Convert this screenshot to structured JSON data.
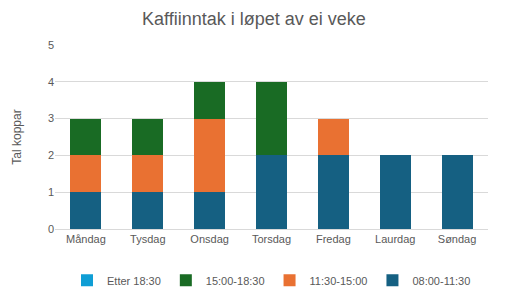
{
  "chart_data": {
    "type": "bar",
    "stacked": true,
    "title": "Kaffiinntak i løpet av ei veke",
    "y_label": "Tal koppar",
    "categories": [
      "Måndag",
      "Tysdag",
      "Onsdag",
      "Torsdag",
      "Fredag",
      "Laurdag",
      "Søndag"
    ],
    "series": [
      {
        "name": "08:00-11:30",
        "color": "#156082",
        "values": [
          1,
          1,
          1,
          2,
          2,
          2,
          2
        ]
      },
      {
        "name": "11:30-15:00",
        "color": "#E97132",
        "values": [
          1,
          1,
          2,
          0,
          1,
          0,
          0
        ]
      },
      {
        "name": "15:00-18:30",
        "color": "#196B24",
        "values": [
          1,
          1,
          1,
          2,
          0,
          0,
          0
        ]
      },
      {
        "name": "Etter 18:30",
        "color": "#0F9ED5",
        "values": [
          0,
          0,
          0,
          0,
          0,
          0,
          0
        ]
      }
    ],
    "ylim": [
      0,
      5
    ],
    "yticks": [
      0,
      1,
      2,
      3,
      4,
      5
    ],
    "grid": true,
    "legend": "bottom"
  }
}
